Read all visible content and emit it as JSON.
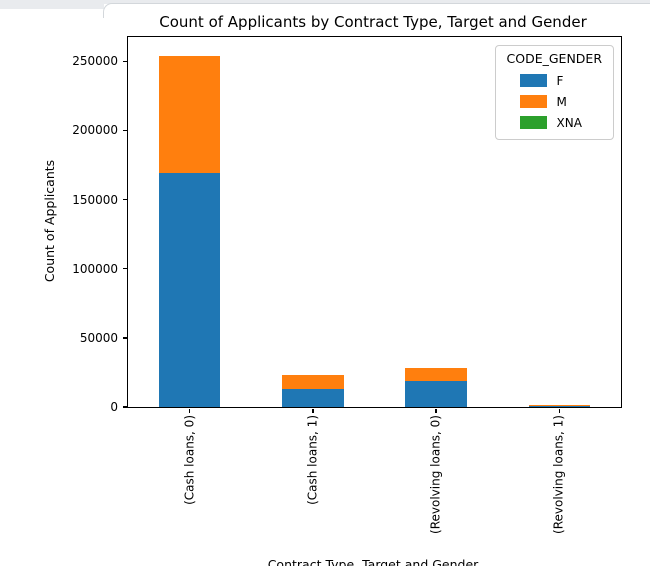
{
  "chart_data": {
    "type": "bar",
    "stacked": true,
    "title": "Count of Applicants by Contract Type, Target and Gender",
    "xlabel": "Contract Type, Target and Gender",
    "ylabel": "Count of Applicants",
    "categories": [
      "(Cash loans, 0)",
      "(Cash loans, 1)",
      "(Revolving loans, 0)",
      "(Revolving loans, 1)"
    ],
    "series": [
      {
        "name": "F",
        "color": "#1f77b4",
        "values": [
          169000,
          13000,
          18500,
          1000
        ]
      },
      {
        "name": "M",
        "color": "#ff7f0e",
        "values": [
          84500,
          10500,
          9500,
          800
        ]
      },
      {
        "name": "XNA",
        "color": "#2ca02c",
        "values": [
          3,
          0,
          1,
          0
        ]
      }
    ],
    "legend": {
      "title": "CODE_GENDER",
      "position": "upper right"
    },
    "ylim": [
      0,
      267500
    ],
    "yticks": [
      0,
      50000,
      100000,
      150000,
      200000,
      250000
    ],
    "ytick_labels": [
      "0",
      "50000",
      "100000",
      "150000",
      "200000",
      "250000"
    ],
    "grid": false,
    "bar_fraction": 0.5
  }
}
